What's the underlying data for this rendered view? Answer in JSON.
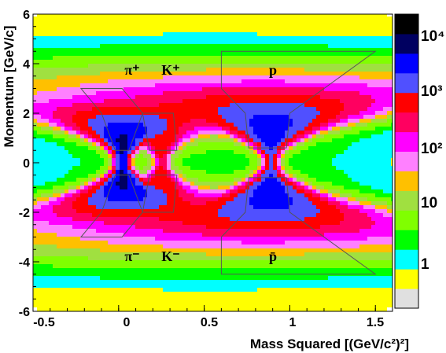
{
  "chart_data": {
    "type": "heatmap",
    "title": "",
    "xlabel": "Mass Squared [(GeV/c²)²]",
    "ylabel": "Momentum [GeV/c]",
    "xlim": [
      -0.5,
      1.6
    ],
    "ylim": [
      -6,
      6
    ],
    "x_ticks": [
      {
        "value": -0.5,
        "label": "-0.5"
      },
      {
        "value": 0,
        "label": "0"
      },
      {
        "value": 0.5,
        "label": "0.5"
      },
      {
        "value": 1,
        "label": "1"
      },
      {
        "value": 1.5,
        "label": "1.5"
      }
    ],
    "y_ticks": [
      {
        "value": 6,
        "label": "6"
      },
      {
        "value": 4,
        "label": "4"
      },
      {
        "value": 2,
        "label": "2"
      },
      {
        "value": 0,
        "label": "0"
      },
      {
        "value": -2,
        "label": "-2"
      },
      {
        "value": -4,
        "label": "-4"
      },
      {
        "value": -6,
        "label": "-6"
      }
    ],
    "color_scale": {
      "type": "log",
      "labels": [
        {
          "value": 1,
          "label": "1"
        },
        {
          "value": 10,
          "label": "10"
        },
        {
          "value": 100,
          "label": "10²"
        },
        {
          "value": 1000,
          "label": "10³"
        },
        {
          "value": 10000,
          "label": "10⁴"
        }
      ],
      "colors": [
        "#e0e0e0",
        "#ffff00",
        "#00ffff",
        "#00ff00",
        "#80ff00",
        "#a0e040",
        "#ffc000",
        "#ff80ff",
        "#ff00ff",
        "#ff0060",
        "#ff0000",
        "#5050ff",
        "#0000ff",
        "#000060",
        "#000000"
      ]
    },
    "species": [
      {
        "label": "π⁺",
        "mass2": 0.0195,
        "charge": 1
      },
      {
        "label": "K⁺",
        "mass2": 0.244,
        "charge": 1
      },
      {
        "label": "p",
        "mass2": 0.88,
        "charge": 1
      },
      {
        "label": "π⁻",
        "mass2": 0.0195,
        "charge": -1
      },
      {
        "label": "K⁻",
        "mass2": 0.244,
        "charge": -1
      },
      {
        "label": "p̄",
        "mass2": 0.88,
        "charge": -1
      }
    ]
  }
}
